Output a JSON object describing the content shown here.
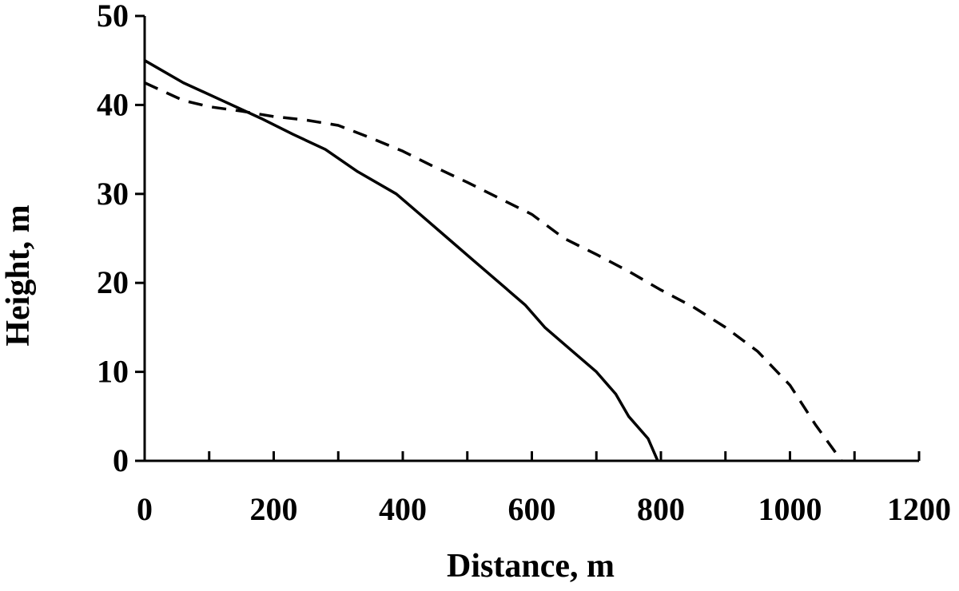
{
  "chart_data": {
    "type": "line",
    "xlabel": "Distance, m",
    "ylabel": "Height, m",
    "xlim": [
      0,
      1200
    ],
    "ylim": [
      0,
      50
    ],
    "xticks": [
      0,
      200,
      400,
      600,
      800,
      1000,
      1200
    ],
    "yticks": [
      0,
      10,
      20,
      30,
      40,
      50
    ],
    "xtick_labels": [
      "0",
      "200",
      "400",
      "600",
      "800",
      "1000",
      "1200"
    ],
    "ytick_labels": [
      "0",
      "10",
      "20",
      "30",
      "40",
      "50"
    ],
    "x_minor_step": 100,
    "grid": false,
    "legend": "none",
    "series": [
      {
        "style": "solid",
        "color": "#000000",
        "x": [
          0,
          60,
          120,
          180,
          230,
          280,
          330,
          390,
          430,
          470,
          510,
          550,
          590,
          620,
          660,
          700,
          730,
          750,
          780,
          795
        ],
        "y": [
          45,
          42.5,
          40.5,
          38.5,
          36.7,
          35,
          32.5,
          30,
          27.5,
          25,
          22.5,
          20,
          17.5,
          15,
          12.5,
          10,
          7.5,
          5,
          2.5,
          0
        ]
      },
      {
        "style": "dashed",
        "color": "#000000",
        "x": [
          0,
          60,
          100,
          150,
          200,
          250,
          300,
          350,
          400,
          450,
          500,
          550,
          600,
          650,
          700,
          750,
          800,
          850,
          900,
          950,
          1000,
          1040,
          1080
        ],
        "y": [
          42.5,
          40.5,
          39.8,
          39.3,
          38.7,
          38.3,
          37.7,
          36.3,
          34.8,
          33,
          31.3,
          29.5,
          27.7,
          25,
          23.2,
          21.3,
          19.2,
          17.3,
          15,
          12.3,
          8.5,
          4,
          0
        ]
      }
    ]
  }
}
